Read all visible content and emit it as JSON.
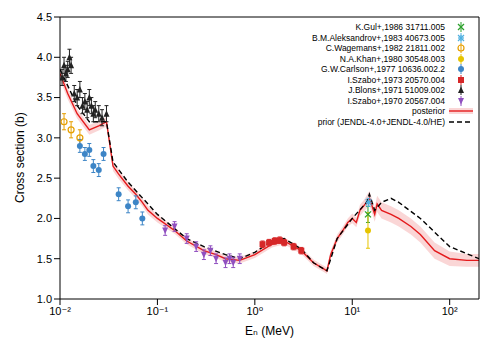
{
  "chart_data": {
    "type": "scatter",
    "x_label": "Eₙ (MeV)",
    "y_label": "Cross section (b)",
    "log": "x",
    "grid": false,
    "legend": "upper right",
    "xlim": [
      0.01,
      200
    ],
    "ylim": [
      1.0,
      4.5
    ],
    "xticks": [
      {
        "value": 0.01,
        "label": "10⁻²"
      },
      {
        "value": 0.1,
        "label": "10⁻¹"
      },
      {
        "value": 1,
        "label": "10⁰"
      },
      {
        "value": 10,
        "label": "10¹"
      },
      {
        "value": 100,
        "label": "10²"
      }
    ],
    "yticks": [
      {
        "value": 1,
        "label": "1.0"
      },
      1.5,
      {
        "value": 2,
        "label": "2.0"
      },
      2.5,
      {
        "value": 3,
        "label": "3.0"
      },
      3.5,
      {
        "value": 4,
        "label": "4.0"
      },
      4.5
    ],
    "series": [
      {
        "name": "K.Gul+,1986 31711.005",
        "type": "scatter",
        "color": "#2ca02c",
        "marker": "x",
        "x": [
          14.5
        ],
        "values": [
          2.05
        ],
        "errors": [
          0.1
        ]
      },
      {
        "name": "B.M.Aleksandrov+,1983 40673.005",
        "type": "scatter",
        "color": "#4fb0e0",
        "marker": "star",
        "x": [
          14.7
        ],
        "values": [
          2.2
        ],
        "errors": [
          0.05
        ]
      },
      {
        "name": "C.Wagemans+,1982 21811.002",
        "type": "scatter",
        "color": "#e69f00",
        "marker": "circle_open",
        "x": [
          0.011,
          0.013,
          0.016
        ],
        "values": [
          3.2,
          3.1,
          3.0
        ],
        "errors": [
          0.1,
          0.1,
          0.1
        ]
      },
      {
        "name": "N.A.Khan+,1980 30548.003",
        "type": "scatter",
        "color": "#e6c400",
        "marker": "circle",
        "x": [
          14.5
        ],
        "values": [
          1.85
        ],
        "errors": [
          0.22
        ]
      },
      {
        "name": "G.W.Carlson+,1977 10636.002.2",
        "type": "scatter",
        "color": "#3d85c6",
        "marker": "circle",
        "x": [
          0.016,
          0.018,
          0.02,
          0.022,
          0.025,
          0.028,
          0.04,
          0.05,
          0.06,
          0.07
        ],
        "values": [
          2.9,
          2.8,
          2.85,
          2.65,
          2.6,
          2.8,
          2.3,
          2.15,
          2.2,
          2.0
        ],
        "errors": [
          0.08,
          0.08,
          0.08,
          0.08,
          0.08,
          0.08,
          0.08,
          0.08,
          0.08,
          0.08
        ]
      },
      {
        "name": "I.Szabo+,1973 20570.004",
        "type": "scatter",
        "color": "#d62728",
        "marker": "square",
        "x": [
          1.2,
          1.4,
          1.6,
          1.8,
          2.0,
          2.5,
          3.0
        ],
        "values": [
          1.68,
          1.7,
          1.72,
          1.73,
          1.7,
          1.65,
          1.6
        ],
        "errors": [
          0.04,
          0.04,
          0.04,
          0.04,
          0.04,
          0.04,
          0.04
        ]
      },
      {
        "name": "J.Blons+,1971 51009.002",
        "type": "scatter",
        "color": "#222222",
        "marker": "triangle",
        "x": [
          0.0105,
          0.011,
          0.0115,
          0.012,
          0.0125,
          0.013,
          0.014,
          0.015,
          0.016,
          0.017,
          0.018,
          0.019,
          0.02,
          0.021,
          0.022,
          0.023,
          0.025,
          0.027,
          0.03
        ],
        "values": [
          3.75,
          3.9,
          3.8,
          3.85,
          4.0,
          3.9,
          3.55,
          3.5,
          3.6,
          3.4,
          3.45,
          3.35,
          3.5,
          3.4,
          3.3,
          3.35,
          3.3,
          3.25,
          3.3
        ],
        "errors": [
          0.1,
          0.1,
          0.1,
          0.1,
          0.1,
          0.1,
          0.1,
          0.1,
          0.1,
          0.1,
          0.1,
          0.1,
          0.1,
          0.1,
          0.1,
          0.1,
          0.1,
          0.1,
          0.1
        ]
      },
      {
        "name": "I.Szabo+,1970 20567.004",
        "type": "scatter",
        "color": "#9050c0",
        "marker": "triangle_down",
        "x": [
          0.12,
          0.15,
          0.2,
          0.25,
          0.3,
          0.35,
          0.4,
          0.5,
          0.55,
          0.6,
          0.7
        ],
        "values": [
          1.85,
          1.9,
          1.75,
          1.65,
          1.55,
          1.6,
          1.5,
          1.45,
          1.5,
          1.45,
          1.5
        ],
        "errors": [
          0.06,
          0.06,
          0.06,
          0.06,
          0.06,
          0.06,
          0.06,
          0.06,
          0.06,
          0.06,
          0.06
        ]
      },
      {
        "name": "posterior",
        "type": "line",
        "color": "#e41a1c",
        "line_style": "solid",
        "x": [
          0.01,
          0.012,
          0.015,
          0.02,
          0.025,
          0.03,
          0.035,
          0.04,
          0.05,
          0.06,
          0.07,
          0.08,
          0.1,
          0.15,
          0.2,
          0.3,
          0.4,
          0.5,
          0.7,
          1,
          1.5,
          2,
          3,
          4,
          5,
          5.5,
          6,
          7,
          8,
          9,
          10,
          11,
          12,
          13,
          14,
          15,
          16,
          17,
          18,
          20,
          25,
          30,
          40,
          50,
          70,
          100,
          150,
          200
        ],
        "values": [
          3.8,
          3.55,
          3.3,
          3.1,
          3.15,
          3.2,
          2.65,
          2.55,
          2.4,
          2.3,
          2.2,
          2.1,
          2.0,
          1.85,
          1.72,
          1.6,
          1.55,
          1.5,
          1.48,
          1.55,
          1.68,
          1.72,
          1.6,
          1.45,
          1.38,
          1.35,
          1.55,
          1.75,
          1.85,
          1.95,
          2.0,
          1.95,
          2.1,
          2.15,
          2.2,
          2.25,
          2.15,
          2.05,
          2.18,
          2.1,
          2.05,
          2.0,
          1.9,
          1.8,
          1.6,
          1.5,
          1.48,
          1.48
        ],
        "lower": [
          3.72,
          3.48,
          3.24,
          3.04,
          3.09,
          3.14,
          2.59,
          2.49,
          2.35,
          2.25,
          2.15,
          2.05,
          1.95,
          1.81,
          1.68,
          1.56,
          1.51,
          1.46,
          1.44,
          1.51,
          1.64,
          1.68,
          1.56,
          1.41,
          1.34,
          1.31,
          1.5,
          1.7,
          1.8,
          1.9,
          1.94,
          1.89,
          2.03,
          2.08,
          2.12,
          2.16,
          2.06,
          1.96,
          2.08,
          2.0,
          1.95,
          1.9,
          1.8,
          1.7,
          1.5,
          1.41,
          1.4,
          1.4
        ],
        "upper": [
          3.88,
          3.62,
          3.36,
          3.16,
          3.21,
          3.26,
          2.71,
          2.61,
          2.45,
          2.35,
          2.25,
          2.15,
          2.05,
          1.89,
          1.76,
          1.64,
          1.59,
          1.54,
          1.52,
          1.59,
          1.72,
          1.76,
          1.64,
          1.49,
          1.42,
          1.39,
          1.6,
          1.8,
          1.9,
          2.0,
          2.06,
          2.01,
          2.17,
          2.22,
          2.28,
          2.34,
          2.24,
          2.14,
          2.28,
          2.2,
          2.15,
          2.1,
          2.0,
          1.9,
          1.7,
          1.59,
          1.56,
          1.56
        ]
      },
      {
        "name": "prior (JENDL-4.0+JENDL-4.0/HE)",
        "type": "line",
        "color": "#000000",
        "line_style": "dashed",
        "x": [
          0.01,
          0.015,
          0.02,
          0.03,
          0.035,
          0.05,
          0.1,
          0.2,
          0.3,
          0.5,
          0.7,
          1,
          1.5,
          2,
          3,
          4,
          5.5,
          7,
          10,
          14,
          15,
          17,
          20,
          25,
          30,
          50,
          100,
          200
        ],
        "values": [
          3.85,
          3.4,
          3.2,
          3.2,
          2.7,
          2.45,
          2.05,
          1.75,
          1.65,
          1.55,
          1.5,
          1.58,
          1.72,
          1.75,
          1.62,
          1.45,
          1.35,
          1.75,
          2.0,
          2.2,
          2.3,
          2.1,
          2.2,
          2.25,
          2.2,
          2.0,
          1.65,
          1.5
        ]
      }
    ]
  }
}
